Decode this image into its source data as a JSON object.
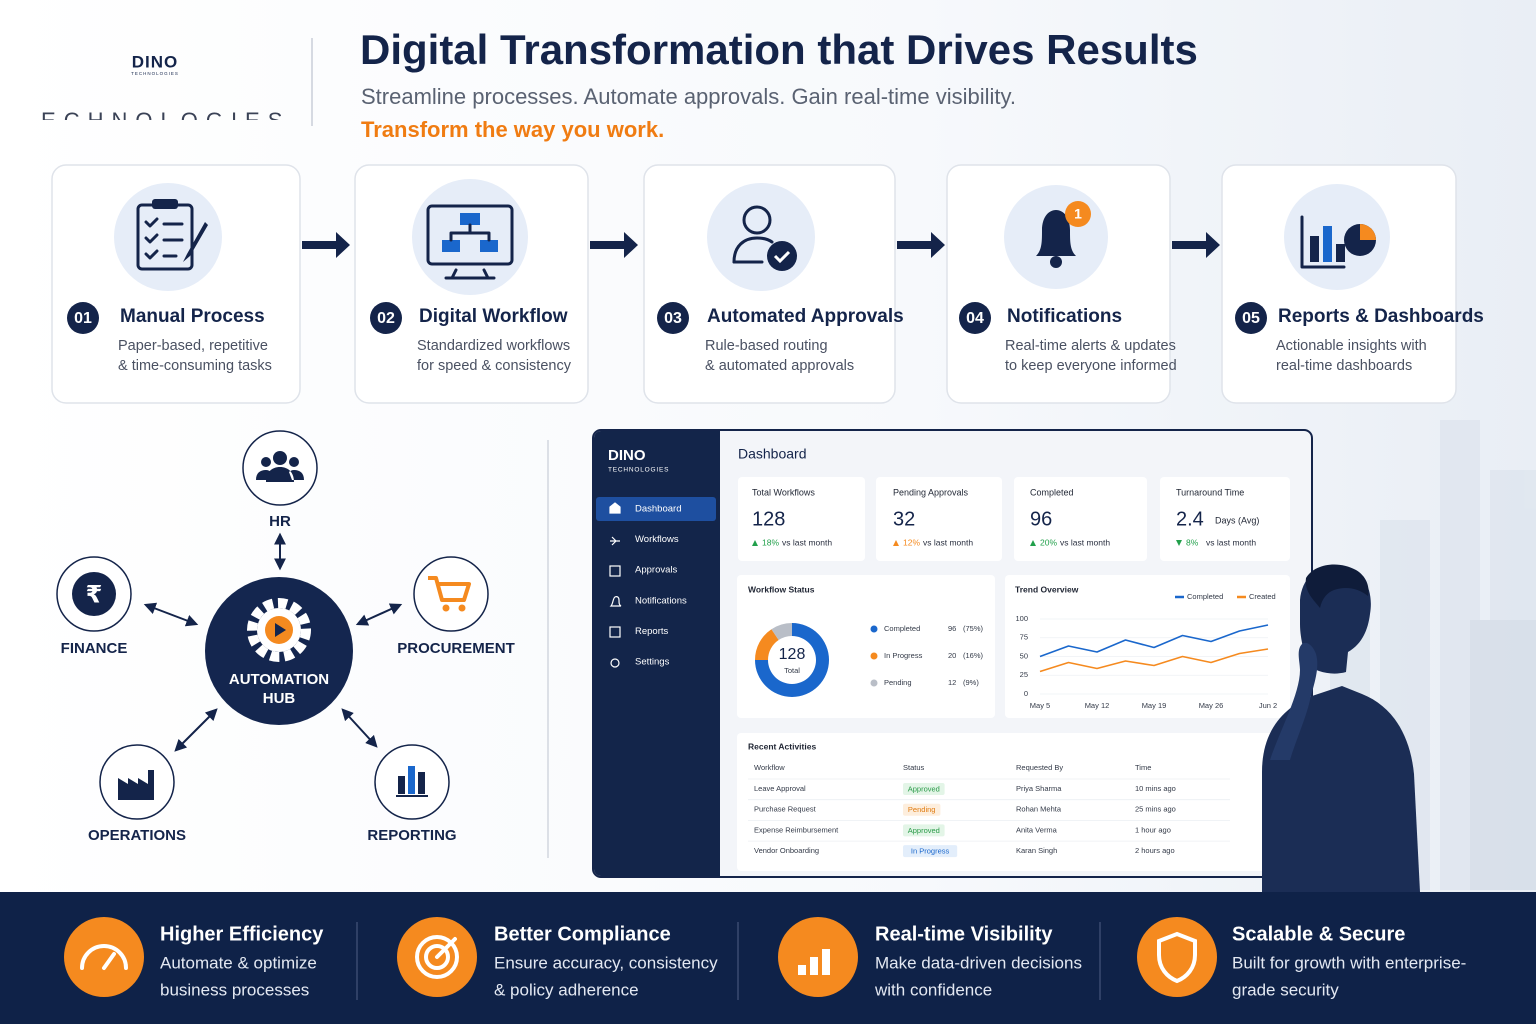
{
  "header": {
    "logo": "DINO",
    "logo_sub": "TECHNOLOGIES",
    "logo_caption": "TECHNOLOGIES",
    "title": "Digital Transformation that Drives Results",
    "subtitle": "Streamline processes. Automate approvals. Gain real-time visibility.",
    "tagline": "Transform the way you work."
  },
  "steps": [
    {
      "number": "01",
      "title": "Manual Process",
      "description": [
        "Paper-based, repetitive",
        "& time-consuming tasks"
      ]
    },
    {
      "number": "02",
      "title": "Digital Workflow",
      "description": [
        "Standardized workflows",
        "for speed & consistency"
      ]
    },
    {
      "number": "03",
      "title": "Automated Approvals",
      "description": [
        "Rule-based routing",
        "& automated approvals"
      ]
    },
    {
      "number": "04",
      "title": "Notifications",
      "badge": "1",
      "description": [
        "Real-time alerts & updates",
        "to keep everyone informed"
      ]
    },
    {
      "number": "05",
      "title": "Reports & Dashboards",
      "description": [
        "Actionable insights with",
        "real-time dashboards"
      ]
    }
  ],
  "hub": {
    "center": [
      "AUTOMATION",
      "HUB"
    ],
    "nodes": [
      "HR",
      "FINANCE",
      "PROCUREMENT",
      "OPERATIONS",
      "REPORTING"
    ]
  },
  "dashboard": {
    "logo": "DINO",
    "logo_sub": "TECHNOLOGIES",
    "nav": [
      "Dashboard",
      "Workflows",
      "Approvals",
      "Notifications",
      "Reports",
      "Settings"
    ],
    "heading": "Dashboard",
    "kpis": [
      {
        "label": "Total Workflows",
        "value": 128,
        "change": "18%",
        "change_text": "vs last month"
      },
      {
        "label": "Pending Approvals",
        "value": 32,
        "change": "12%",
        "change_text": "vs last month"
      },
      {
        "label": "Completed",
        "value": 96,
        "change": "20%",
        "change_text": "vs last month"
      },
      {
        "label": "Turnaround Time",
        "value": 2.4,
        "unit": "Days (Avg)",
        "change": "8%",
        "change_text": "vs last month"
      }
    ],
    "workflow_status": {
      "title": "Workflow Status",
      "total": 128,
      "total_label": "Total",
      "items": [
        {
          "name": "Completed",
          "value": 96,
          "share": "(75%)",
          "color": "#1a67cc"
        },
        {
          "name": "In Progress",
          "value": 20,
          "share": "(16%)",
          "color": "#f58a1f"
        },
        {
          "name": "Pending",
          "value": 12,
          "share": "(9%)",
          "color": "#b9bec7"
        }
      ]
    },
    "trend": {
      "title": "Trend Overview",
      "categories": [
        "May 5",
        null,
        "May 12",
        null,
        "May 19",
        null,
        "May 26",
        null,
        "Jun 2"
      ],
      "ylim": [
        0,
        100
      ],
      "yticks": [
        0,
        25,
        50,
        75,
        100
      ],
      "series": [
        {
          "name": "Completed",
          "color": "#1a67cc",
          "values": [
            50,
            64,
            56,
            72,
            62,
            78,
            70,
            84,
            92
          ]
        },
        {
          "name": "Created",
          "color": "#f58a1f",
          "values": [
            30,
            42,
            34,
            44,
            38,
            50,
            42,
            54,
            60
          ]
        }
      ]
    },
    "recent": {
      "title": "Recent Activities",
      "columns": [
        "Workflow",
        "Status",
        "Requested By",
        "Time"
      ],
      "rows": [
        [
          "Leave Approval",
          "Approved",
          "Priya Sharma",
          "10 mins ago"
        ],
        [
          "Purchase Request",
          "Pending",
          "Rohan Mehta",
          "25 mins ago"
        ],
        [
          "Expense Reimbursement",
          "Approved",
          "Anita Verma",
          "1 hour ago"
        ],
        [
          "Vendor Onboarding",
          "In Progress",
          "Karan Singh",
          "2 hours ago"
        ]
      ]
    }
  },
  "benefits": [
    {
      "title": "Higher Efficiency",
      "description": [
        "Automate & optimize",
        "business processes"
      ]
    },
    {
      "title": "Better Compliance",
      "description": [
        "Ensure accuracy, consistency",
        "& policy adherence"
      ]
    },
    {
      "title": "Real-time Visibility",
      "description": [
        "Make data-driven decisions",
        "with confidence"
      ]
    },
    {
      "title": "Scalable & Secure",
      "description": [
        "Built for growth with enterprise-",
        "grade security"
      ]
    }
  ]
}
